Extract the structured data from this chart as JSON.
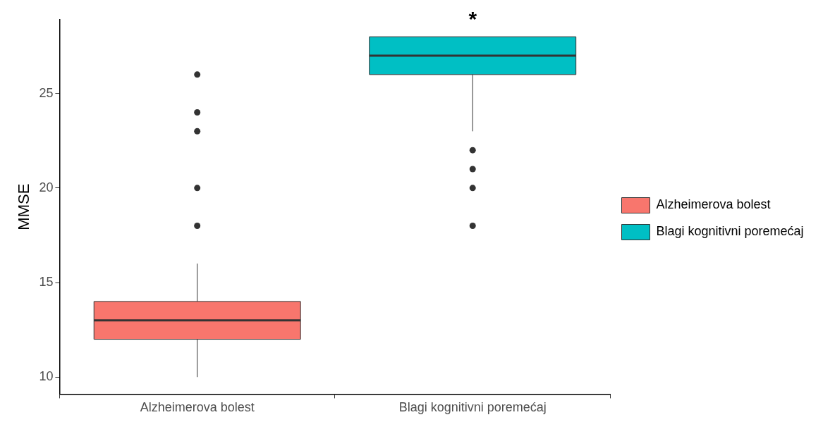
{
  "chart_data": {
    "type": "box",
    "ylabel": "MMSE",
    "categories": [
      "Alzheimerova bolest",
      "Blagi kognitivni poremećaj"
    ],
    "series": [
      {
        "name": "Alzheimerova bolest",
        "color": "#f8766d",
        "boxes": [
          {
            "low": 10,
            "q1": 12,
            "median": 13,
            "q3": 14,
            "high": 16,
            "outliers": [
              18,
              20,
              23,
              24,
              26
            ]
          },
          null
        ]
      },
      {
        "name": "Blagi kognitivni poremećaj",
        "color": "#00bfc4",
        "boxes": [
          null,
          {
            "low": 23,
            "q1": 26,
            "median": 27,
            "q3": 28,
            "high": 28,
            "outliers": [
              18,
              20,
              21,
              22
            ]
          }
        ]
      }
    ],
    "ylim": [
      9.1,
      28.9
    ],
    "yticks": [
      10,
      15,
      20,
      25
    ],
    "grid": false,
    "legend": "right",
    "annotations": [
      {
        "text": "*",
        "x": "Blagi kognitivni poremećaj"
      }
    ]
  }
}
